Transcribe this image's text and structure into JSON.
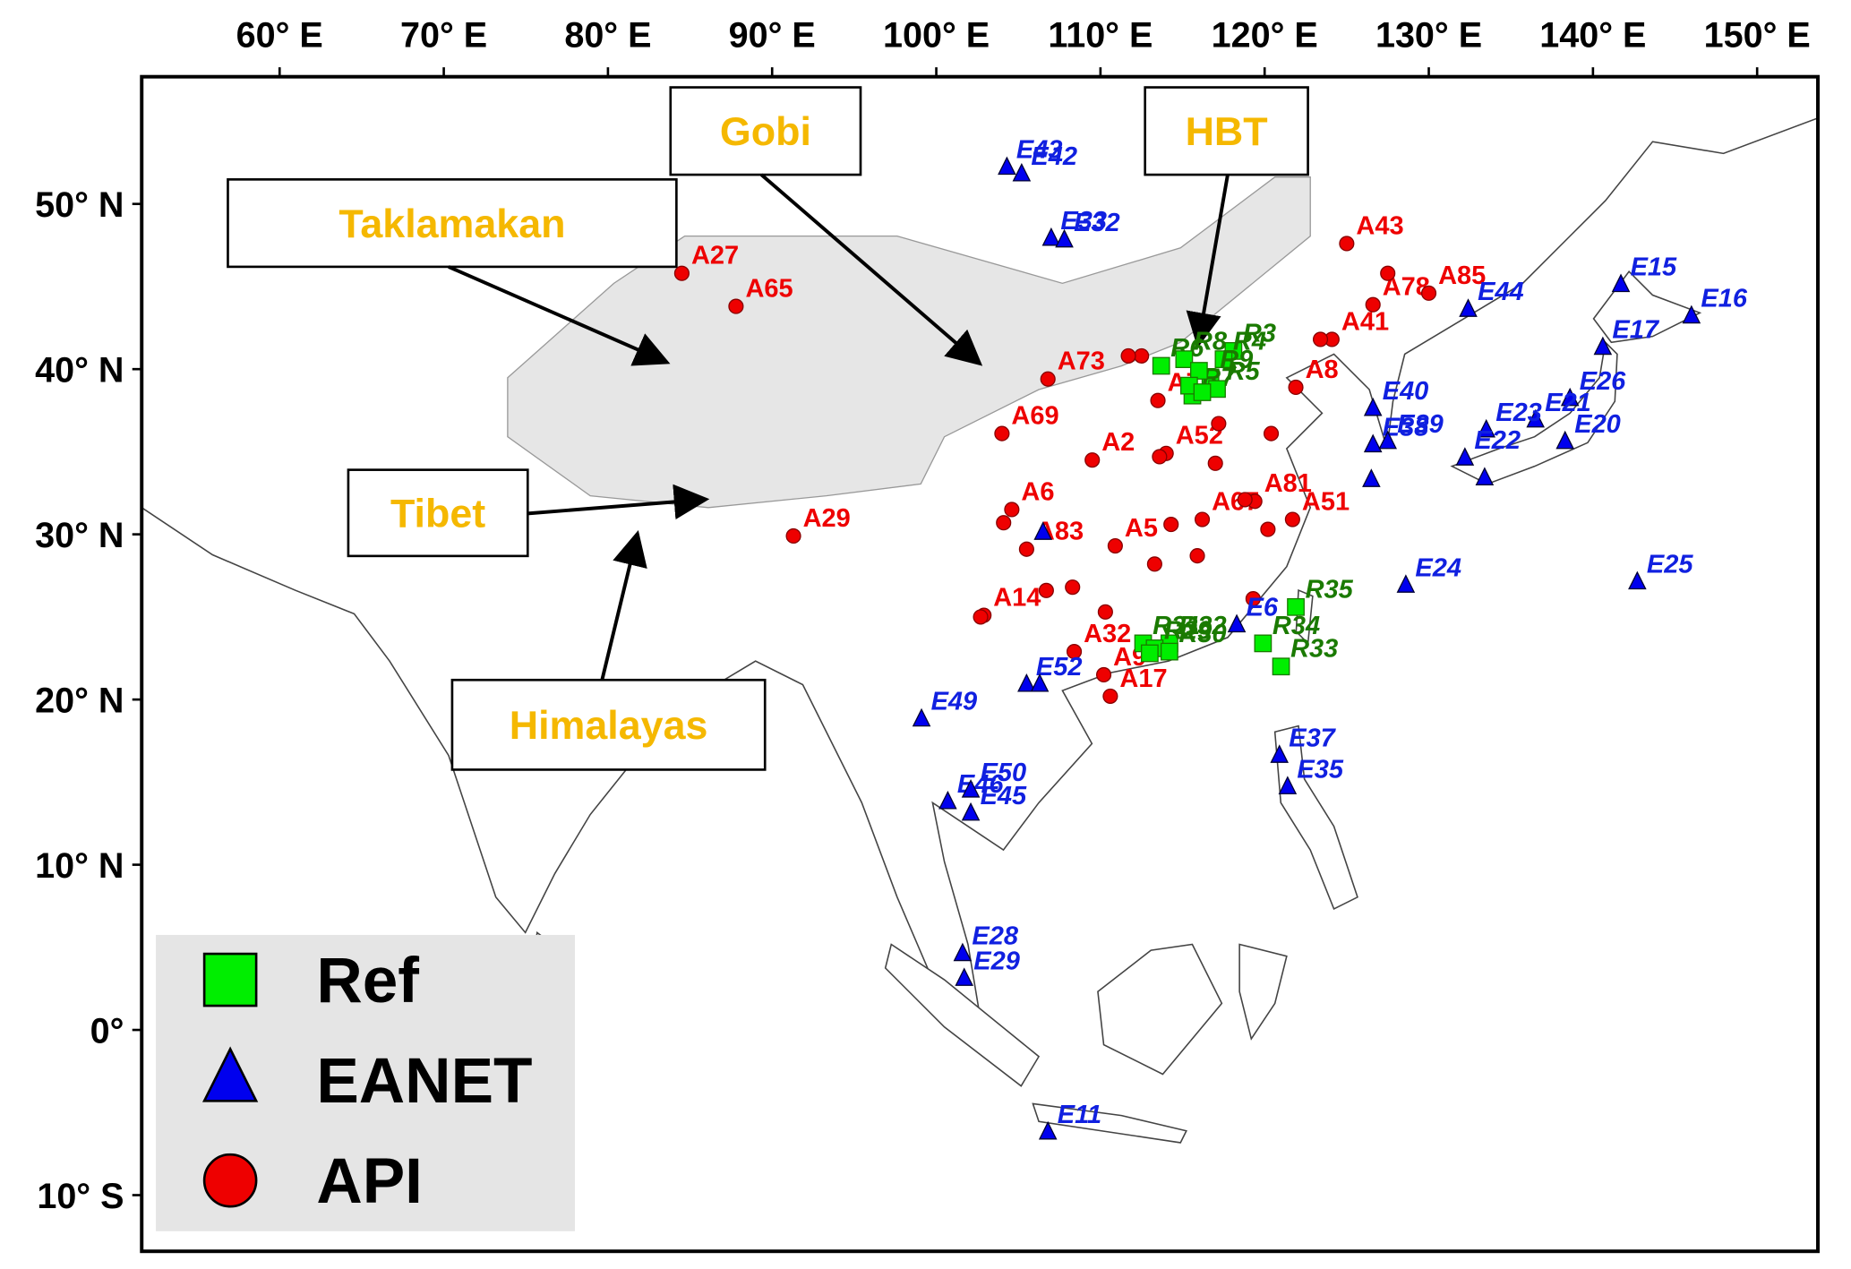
{
  "map": {
    "xlim": [
      51.6,
      153.7
    ],
    "ylim": [
      -13.4,
      57.7
    ],
    "xticks": [
      {
        "value": 60,
        "label": "60° E"
      },
      {
        "value": 70,
        "label": "70° E"
      },
      {
        "value": 80,
        "label": "80° E"
      },
      {
        "value": 90,
        "label": "90° E"
      },
      {
        "value": 100,
        "label": "100° E"
      },
      {
        "value": 110,
        "label": "110° E"
      },
      {
        "value": 120,
        "label": "120° E"
      },
      {
        "value": 130,
        "label": "130° E"
      },
      {
        "value": 140,
        "label": "140° E"
      },
      {
        "value": 150,
        "label": "150° E"
      }
    ],
    "yticks": [
      {
        "value": 50,
        "label": "50° N"
      },
      {
        "value": 40,
        "label": "40° N"
      },
      {
        "value": 30,
        "label": "30° N"
      },
      {
        "value": 20,
        "label": "20° N"
      },
      {
        "value": 10,
        "label": "10° N"
      },
      {
        "value": 0,
        "label": "0°"
      },
      {
        "value": -10,
        "label": "10° S"
      }
    ],
    "regions": [
      "Taklamakan",
      "Gobi",
      "HBT",
      "Tibet",
      "Himalayas"
    ],
    "groups": [
      {
        "name": "Ref",
        "color": "#00ee00",
        "label_color": "#1a7a00",
        "shape": "square",
        "stations": [
          {
            "name": "R6",
            "lon": 113.7,
            "lat": 40.2
          },
          {
            "name": "R3",
            "lon": 118.1,
            "lat": 41.1
          },
          {
            "name": "R4",
            "lon": 117.5,
            "lat": 40.6
          },
          {
            "name": "R8",
            "lon": 115.1,
            "lat": 40.6
          },
          {
            "name": "R9",
            "lon": 116.7,
            "lat": 39.5
          },
          {
            "name": "R7",
            "lon": 115.6,
            "lat": 38.4
          },
          {
            "name": "R5",
            "lon": 117.1,
            "lat": 38.8
          },
          {
            "name": "R31",
            "lon": 112.6,
            "lat": 23.4
          },
          {
            "name": "R32",
            "lon": 114.2,
            "lat": 23.4
          },
          {
            "name": "R29",
            "lon": 113.3,
            "lat": 23.1
          },
          {
            "name": "R30",
            "lon": 114.2,
            "lat": 22.9
          },
          {
            "name": "R34",
            "lon": 119.9,
            "lat": 23.4
          },
          {
            "name": "R35",
            "lon": 121.9,
            "lat": 25.6
          },
          {
            "name": "R33",
            "lon": 121.0,
            "lat": 22.0
          },
          {
            "lon": 116.0,
            "lat": 39.9
          },
          {
            "lon": 115.4,
            "lat": 39.0
          },
          {
            "lon": 116.2,
            "lat": 38.6
          },
          {
            "lon": 113.0,
            "lat": 22.8
          }
        ]
      },
      {
        "name": "EANET",
        "color": "#0000ee",
        "label_color": "#1020e0",
        "shape": "triangle",
        "stations": [
          {
            "name": "E43",
            "lon": 104.3,
            "lat": 52.2
          },
          {
            "name": "E42",
            "lon": 105.2,
            "lat": 51.8
          },
          {
            "name": "E33",
            "lon": 107.0,
            "lat": 47.9
          },
          {
            "name": "E32",
            "lon": 107.8,
            "lat": 47.8
          },
          {
            "name": "E44",
            "lon": 132.4,
            "lat": 43.6
          },
          {
            "name": "E15",
            "lon": 141.7,
            "lat": 45.1
          },
          {
            "name": "E16",
            "lon": 146.0,
            "lat": 43.2
          },
          {
            "name": "E17",
            "lon": 140.6,
            "lat": 41.3
          },
          {
            "name": "E26",
            "lon": 138.6,
            "lat": 38.2
          },
          {
            "name": "E21",
            "lon": 136.5,
            "lat": 36.9
          },
          {
            "name": "E20",
            "lon": 138.3,
            "lat": 35.6
          },
          {
            "name": "E23",
            "lon": 133.5,
            "lat": 36.3
          },
          {
            "name": "E22",
            "lon": 132.2,
            "lat": 34.6
          },
          {
            "name": "E40",
            "lon": 126.6,
            "lat": 37.6
          },
          {
            "name": "E38",
            "lon": 126.6,
            "lat": 35.4
          },
          {
            "name": "E39",
            "lon": 127.5,
            "lat": 35.6
          },
          {
            "name": "E24",
            "lon": 128.6,
            "lat": 26.9
          },
          {
            "name": "E25",
            "lon": 142.7,
            "lat": 27.1
          },
          {
            "name": "E6",
            "lon": 118.3,
            "lat": 24.5
          },
          {
            "name": "E49",
            "lon": 99.1,
            "lat": 18.8
          },
          {
            "name": "E52",
            "lon": 105.5,
            "lat": 20.9
          },
          {
            "name": "E46",
            "lon": 100.7,
            "lat": 13.8
          },
          {
            "name": "E50",
            "lon": 102.1,
            "lat": 14.5
          },
          {
            "name": "E45",
            "lon": 102.1,
            "lat": 13.1
          },
          {
            "name": "E37",
            "lon": 120.9,
            "lat": 16.6
          },
          {
            "name": "E35",
            "lon": 121.4,
            "lat": 14.7
          },
          {
            "name": "E28",
            "lon": 101.6,
            "lat": 4.6
          },
          {
            "name": "E29",
            "lon": 101.7,
            "lat": 3.1
          },
          {
            "name": "E11",
            "lon": 106.8,
            "lat": -6.2
          },
          {
            "lon": 106.3,
            "lat": 20.9
          },
          {
            "lon": 126.5,
            "lat": 33.3
          },
          {
            "lon": 133.4,
            "lat": 33.4
          },
          {
            "lon": 106.5,
            "lat": 30.1
          }
        ]
      },
      {
        "name": "API",
        "color": "#ee0000",
        "label_color": "#ee0000",
        "shape": "circle",
        "stations": [
          {
            "name": "A43",
            "lon": 125.0,
            "lat": 47.6
          },
          {
            "name": "A78",
            "lon": 126.6,
            "lat": 43.9
          },
          {
            "name": "A85",
            "lon": 130.0,
            "lat": 44.6
          },
          {
            "name": "A27",
            "lon": 84.5,
            "lat": 45.8
          },
          {
            "name": "A65",
            "lon": 87.8,
            "lat": 43.8
          },
          {
            "name": "A29",
            "lon": 91.3,
            "lat": 29.9
          },
          {
            "name": "A41",
            "lon": 124.1,
            "lat": 41.8
          },
          {
            "name": "A8",
            "lon": 121.9,
            "lat": 38.9
          },
          {
            "name": "A73",
            "lon": 106.8,
            "lat": 39.4
          },
          {
            "name": "A69",
            "lon": 104.0,
            "lat": 36.1
          },
          {
            "name": "A2",
            "lon": 109.5,
            "lat": 34.5
          },
          {
            "name": "A72",
            "lon": 113.5,
            "lat": 38.1
          },
          {
            "name": "A52",
            "lon": 114.0,
            "lat": 34.9
          },
          {
            "name": "A6",
            "lon": 104.6,
            "lat": 31.5
          },
          {
            "name": "A83",
            "lon": 105.5,
            "lat": 29.1
          },
          {
            "name": "A67",
            "lon": 116.2,
            "lat": 30.9
          },
          {
            "name": "A5",
            "lon": 110.9,
            "lat": 29.3
          },
          {
            "name": "A81",
            "lon": 119.4,
            "lat": 32.0
          },
          {
            "name": "A51",
            "lon": 121.7,
            "lat": 30.9
          },
          {
            "name": "A14",
            "lon": 102.9,
            "lat": 25.1
          },
          {
            "name": "A32",
            "lon": 108.4,
            "lat": 22.9
          },
          {
            "name": "A9",
            "lon": 110.2,
            "lat": 21.5
          },
          {
            "name": "A17",
            "lon": 110.6,
            "lat": 20.2
          },
          {
            "lon": 127.5,
            "lat": 45.8
          },
          {
            "lon": 112.5,
            "lat": 40.8
          },
          {
            "lon": 117.2,
            "lat": 36.7
          },
          {
            "lon": 118.8,
            "lat": 32.1
          },
          {
            "lon": 120.2,
            "lat": 30.3
          },
          {
            "lon": 113.3,
            "lat": 28.2
          },
          {
            "lon": 114.3,
            "lat": 30.6
          },
          {
            "lon": 106.7,
            "lat": 26.6
          },
          {
            "lon": 108.3,
            "lat": 26.8
          },
          {
            "lon": 119.3,
            "lat": 26.1
          },
          {
            "lon": 115.9,
            "lat": 28.7
          },
          {
            "lon": 117.0,
            "lat": 34.3
          },
          {
            "lon": 120.4,
            "lat": 36.1
          },
          {
            "lon": 102.7,
            "lat": 25.0
          },
          {
            "lon": 104.1,
            "lat": 30.7
          },
          {
            "lon": 110.3,
            "lat": 25.3
          },
          {
            "lon": 113.6,
            "lat": 34.7
          },
          {
            "lon": 111.7,
            "lat": 40.8
          },
          {
            "lon": 123.4,
            "lat": 41.8
          }
        ]
      }
    ]
  }
}
